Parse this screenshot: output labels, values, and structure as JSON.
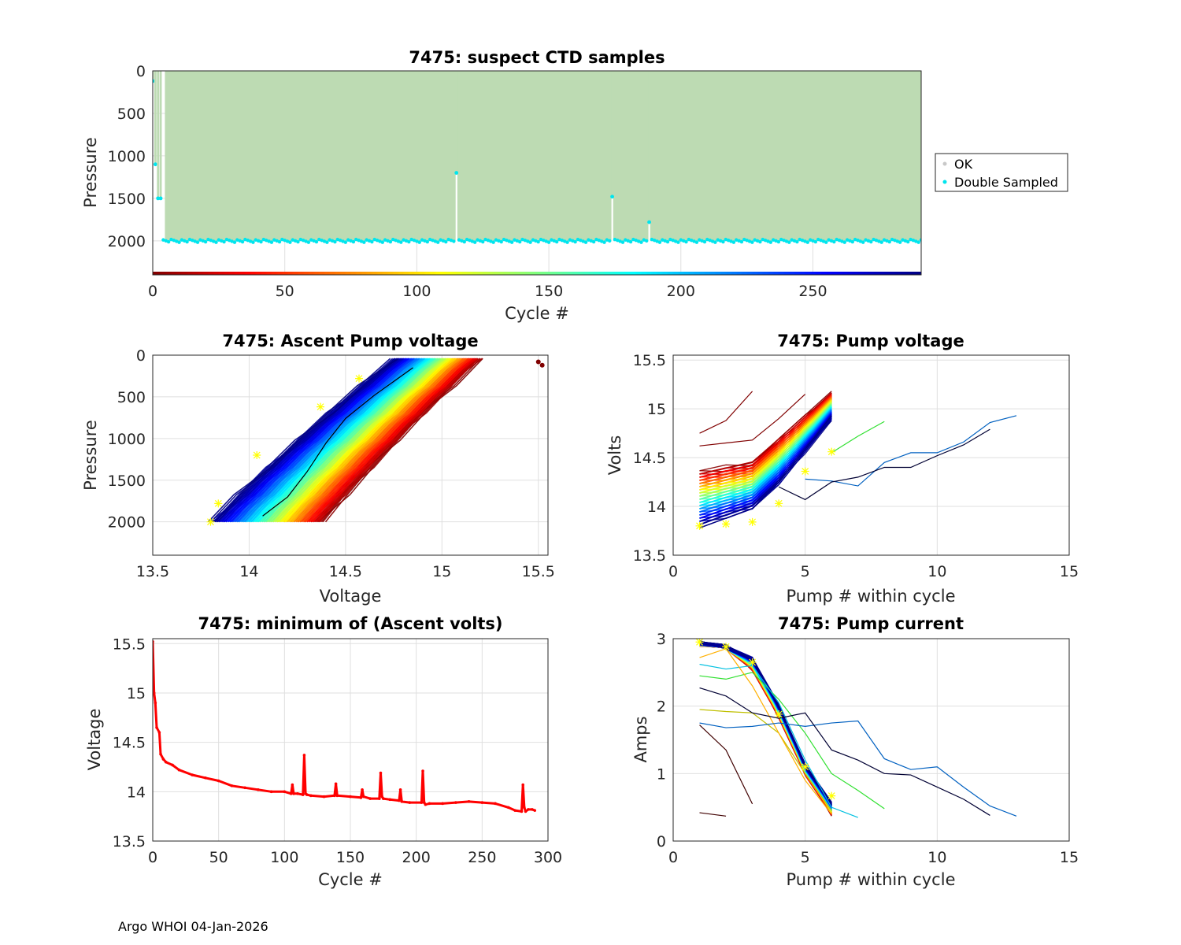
{
  "footer": "Argo WHOI 04-Jan-2026",
  "colors": {
    "ok_gray": "#c8c8c8",
    "double": "#00e5ee",
    "fill_green": "#bddbb3",
    "star": "#ffff00",
    "red": "#ff0000"
  },
  "chart_data": [
    {
      "id": "ctd",
      "type": "scatter",
      "title": "7475: suspect CTD samples",
      "xlabel": "Cycle #",
      "ylabel": "Pressure",
      "xlim": [
        0,
        291
      ],
      "ylim": [
        0,
        2400
      ],
      "y_reversed": true,
      "xticks": [
        0,
        50,
        100,
        150,
        200,
        250
      ],
      "yticks": [
        0,
        500,
        1000,
        1500,
        2000
      ],
      "legend": {
        "position": "outside-right",
        "entries": [
          "OK",
          "Double Sampled"
        ]
      },
      "profile_bottom_pressure": 2000,
      "anomalous_profiles": [
        {
          "cycle": 0,
          "bottom": 120
        },
        {
          "cycle": 1,
          "bottom": 1100
        },
        {
          "cycle": 2,
          "bottom": 1500
        },
        {
          "cycle": 3,
          "bottom": 1500
        },
        {
          "cycle": 115,
          "bottom": 1200
        },
        {
          "cycle": 174,
          "bottom": 1480
        },
        {
          "cycle": 188,
          "bottom": 1780
        }
      ]
    },
    {
      "id": "ascent",
      "type": "line",
      "title": "7475: Ascent Pump voltage",
      "xlabel": "Voltage",
      "ylabel": "Pressure",
      "xlim": [
        13.5,
        15.55
      ],
      "ylim": [
        0,
        2400
      ],
      "y_reversed": true,
      "xticks": [
        13.5,
        14,
        14.5,
        15,
        15.5
      ],
      "yticks": [
        0,
        500,
        1000,
        1500,
        2000
      ],
      "relation": "voltage at 2000 dbar rises from about 13.8 to 14.4 V and at surface reaches about 14.9-15.2 V; color encodes cycle number (dark red early, dark blue late)",
      "outlier_points": [
        [
          15.5,
          80
        ],
        [
          15.52,
          120
        ]
      ]
    },
    {
      "id": "pumpv",
      "type": "line",
      "title": "7475: Pump voltage",
      "xlabel": "Pump # within cycle",
      "ylabel": "Volts",
      "xlim": [
        0,
        15
      ],
      "ylim": [
        13.5,
        15.55
      ],
      "xticks": [
        0,
        5,
        10,
        15
      ],
      "yticks": [
        13.5,
        14,
        14.5,
        15,
        15.5
      ],
      "long_series": [
        {
          "x": [
            5,
            6,
            7,
            8,
            9,
            10,
            11,
            12,
            13
          ],
          "y": [
            14.28,
            14.26,
            14.21,
            14.45,
            14.55,
            14.55,
            14.66,
            14.86,
            14.93
          ]
        },
        {
          "x": [
            4,
            5,
            6,
            7,
            8,
            9,
            10,
            11,
            12
          ],
          "y": [
            14.2,
            14.07,
            14.25,
            14.3,
            14.4,
            14.4,
            14.52,
            14.63,
            14.79
          ]
        }
      ],
      "star_points": [
        [
          1,
          13.8
        ],
        [
          2,
          13.82
        ],
        [
          3,
          13.84
        ],
        [
          4,
          14.03
        ],
        [
          5,
          14.36
        ],
        [
          6,
          14.56
        ]
      ]
    },
    {
      "id": "minv",
      "type": "line",
      "title": "7475: minimum of (Ascent volts)",
      "xlabel": "Cycle #",
      "ylabel": "Voltage",
      "xlim": [
        0,
        300
      ],
      "ylim": [
        13.5,
        15.55
      ],
      "xticks": [
        0,
        50,
        100,
        150,
        200,
        250,
        300
      ],
      "yticks": [
        13.5,
        14,
        14.5,
        15,
        15.5
      ],
      "series": [
        {
          "name": "minimum ascent voltage",
          "x": [
            0,
            1,
            2,
            3,
            5,
            6,
            8,
            10,
            15,
            20,
            30,
            40,
            50,
            60,
            70,
            80,
            90,
            100,
            105,
            106,
            107,
            110,
            114,
            115,
            116,
            117,
            120,
            130,
            138,
            139,
            140,
            150,
            158,
            159,
            160,
            165,
            172,
            173,
            174,
            175,
            180,
            187,
            188,
            189,
            195,
            204,
            205,
            206,
            207,
            210,
            220,
            230,
            240,
            250,
            260,
            270,
            275,
            280,
            281,
            282,
            283,
            285,
            288,
            290
          ],
          "y": [
            15.52,
            15.0,
            14.9,
            14.65,
            14.6,
            14.38,
            14.33,
            14.3,
            14.27,
            14.22,
            14.17,
            14.14,
            14.11,
            14.06,
            14.04,
            14.02,
            14.0,
            14.0,
            13.98,
            14.07,
            13.98,
            13.98,
            13.97,
            14.37,
            13.98,
            13.97,
            13.96,
            13.95,
            13.96,
            14.08,
            13.96,
            13.95,
            13.94,
            14.02,
            13.95,
            13.93,
            13.93,
            14.19,
            13.95,
            13.93,
            13.92,
            13.91,
            14.02,
            13.9,
            13.89,
            13.89,
            14.21,
            13.89,
            13.87,
            13.88,
            13.88,
            13.89,
            13.9,
            13.89,
            13.88,
            13.84,
            13.81,
            13.8,
            14.07,
            13.84,
            13.8,
            13.82,
            13.82,
            13.81
          ]
        }
      ]
    },
    {
      "id": "current",
      "type": "line",
      "title": "7475: Pump current",
      "xlabel": "Pump # within cycle",
      "ylabel": "Amps",
      "xlim": [
        0,
        15
      ],
      "ylim": [
        0,
        3
      ],
      "xticks": [
        0,
        5,
        10,
        15
      ],
      "yticks": [
        0,
        1,
        2,
        3
      ],
      "long_series": [
        {
          "x": [
            1,
            2,
            3,
            4,
            5,
            6,
            7,
            8,
            9,
            10,
            11,
            12,
            13
          ],
          "y": [
            1.75,
            1.68,
            1.7,
            1.75,
            1.7,
            1.75,
            1.78,
            1.22,
            1.06,
            1.1,
            0.8,
            0.52,
            0.37
          ]
        },
        {
          "x": [
            1,
            2,
            3,
            4,
            5,
            6,
            7,
            8,
            9,
            10,
            11,
            12
          ],
          "y": [
            2.27,
            2.15,
            1.9,
            1.82,
            1.9,
            1.35,
            1.2,
            1.0,
            0.98,
            0.8,
            0.62,
            0.38
          ]
        }
      ],
      "short_series": [
        {
          "x": [
            1,
            2
          ],
          "y": [
            0.42,
            0.37
          ]
        },
        {
          "x": [
            1,
            2,
            3
          ],
          "y": [
            1.72,
            1.35,
            0.55
          ]
        }
      ],
      "star_points": [
        [
          1,
          2.95
        ],
        [
          2,
          2.88
        ],
        [
          3,
          2.65
        ],
        [
          4,
          1.88
        ],
        [
          5,
          1.1
        ],
        [
          6,
          0.67
        ]
      ]
    }
  ]
}
